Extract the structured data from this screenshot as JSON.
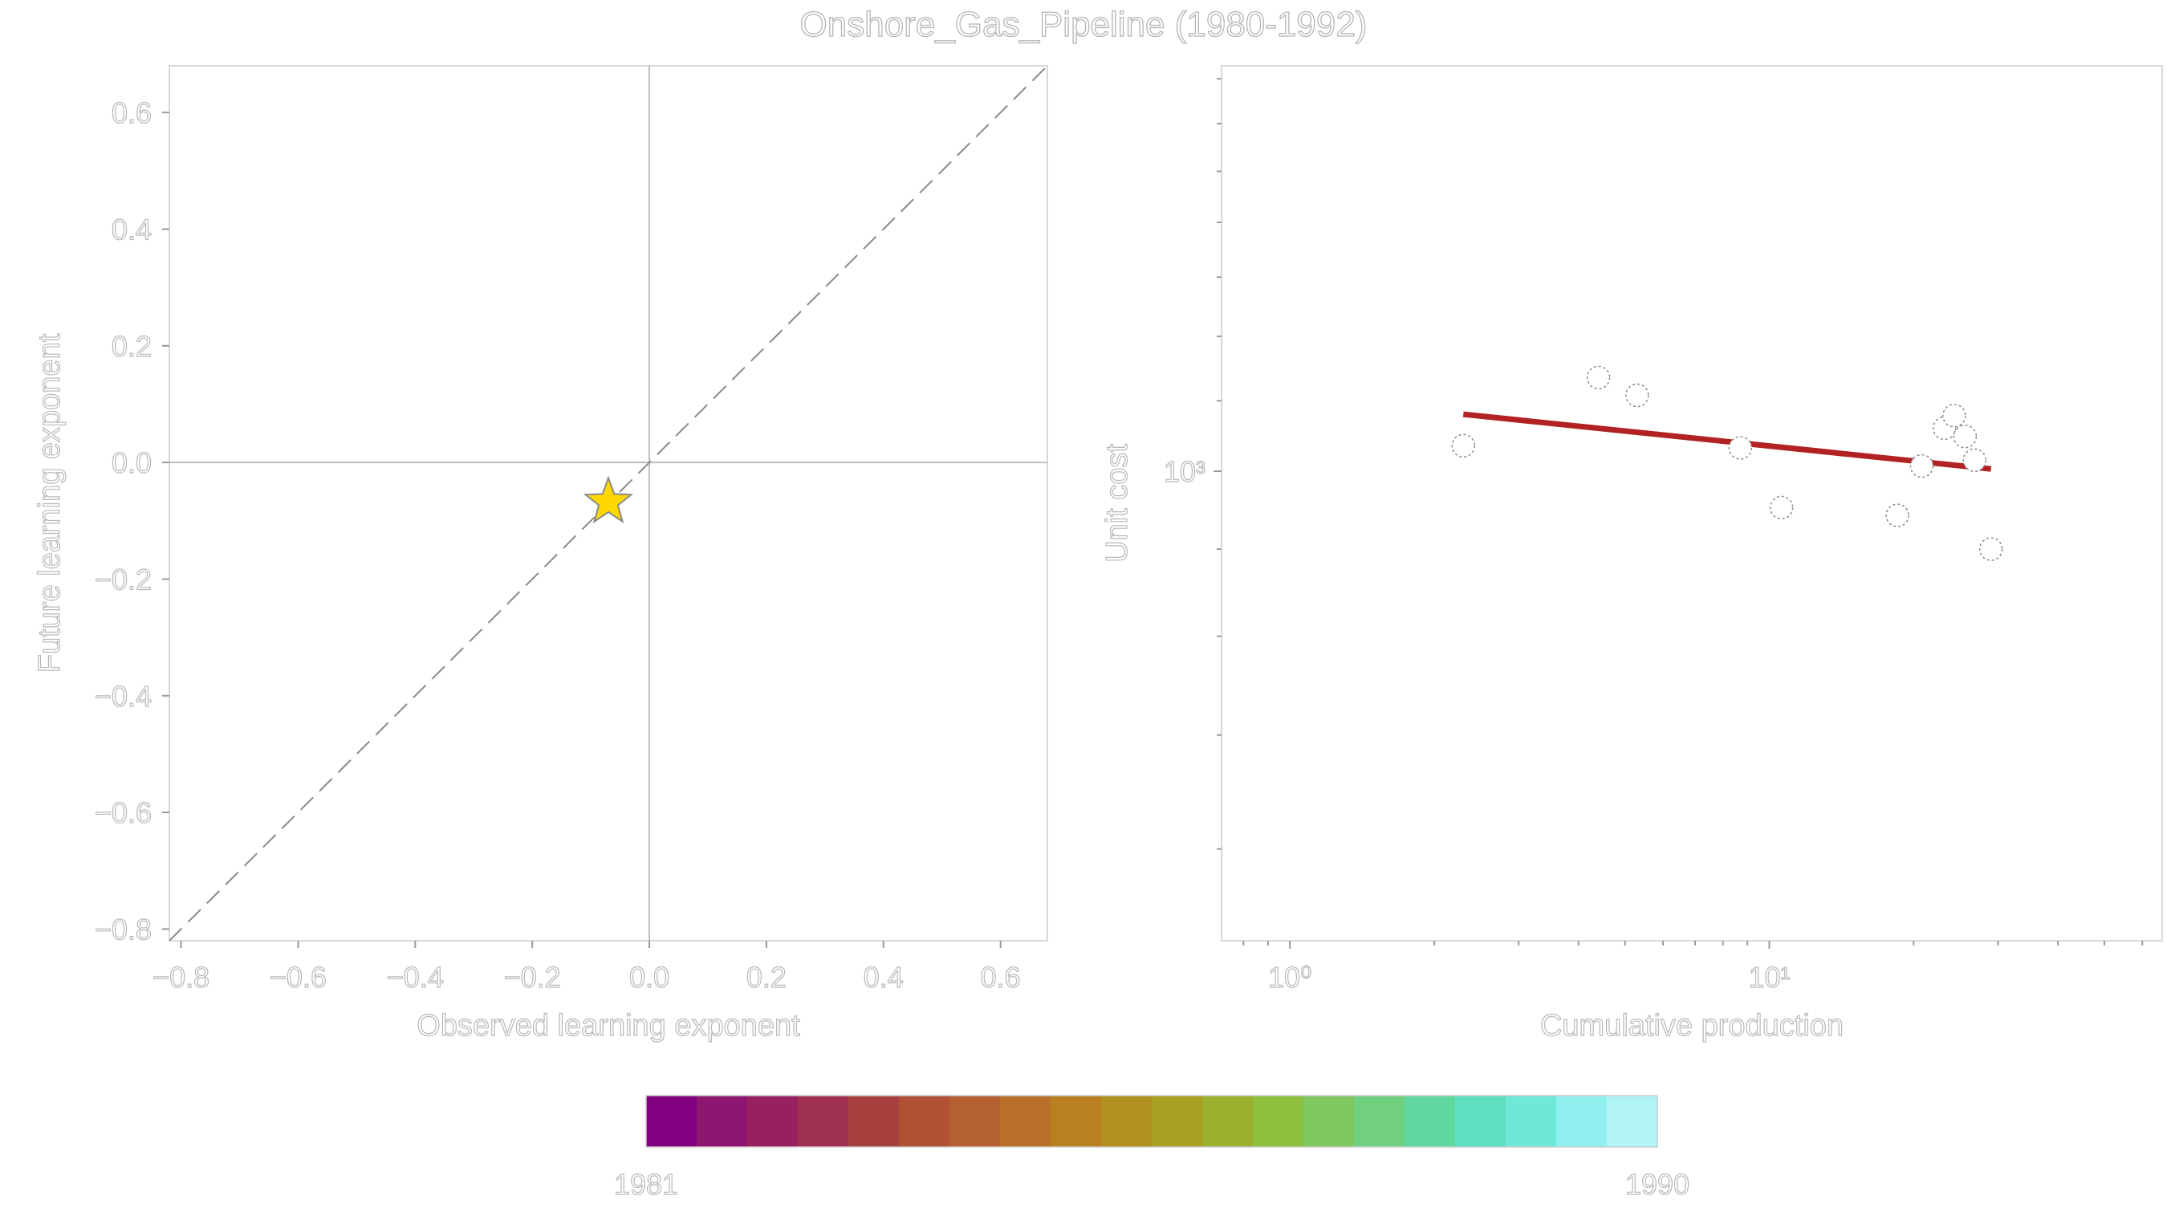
{
  "title": "Onshore_Gas_Pipeline (1980-1992)",
  "chart_data": [
    {
      "type": "scatter",
      "xlabel": "Observed learning exponent",
      "ylabel": "Future learning exponent",
      "xlim": [
        -0.82,
        0.68
      ],
      "ylim": [
        -0.82,
        0.68
      ],
      "x_ticks": [
        "−0.8",
        "−0.6",
        "−0.4",
        "−0.2",
        "0.0",
        "0.2",
        "0.4",
        "0.6"
      ],
      "y_ticks": [
        "−0.8",
        "−0.6",
        "−0.4",
        "−0.2",
        "0.0",
        "0.2",
        "0.4",
        "0.6"
      ],
      "x_tick_values": [
        -0.8,
        -0.6,
        -0.4,
        -0.2,
        0.0,
        0.2,
        0.4,
        0.6
      ],
      "y_tick_values": [
        -0.8,
        -0.6,
        -0.4,
        -0.2,
        0.0,
        0.2,
        0.4,
        0.6
      ],
      "reference_lines": [
        "x=0",
        "y=0",
        "y=x (dashed)"
      ],
      "points": [
        {
          "x": -0.07,
          "y": -0.068,
          "marker": "star",
          "color": "#FFD700"
        }
      ],
      "grid": false
    },
    {
      "type": "scatter",
      "xlabel": "Cumulative production",
      "ylabel": "Unit cost",
      "x_scale": "log",
      "y_scale": "log",
      "x_ticks": [
        "10⁰",
        "10¹"
      ],
      "x_tick_values": [
        1,
        10
      ],
      "y_ticks": [
        "10³"
      ],
      "y_tick_values": [
        1000
      ],
      "xlim": [
        0.72,
        66
      ],
      "ylim": [
        530,
        1730
      ],
      "points": [
        {
          "x": 2.3,
          "y": 1035
        },
        {
          "x": 4.4,
          "y": 1135
        },
        {
          "x": 5.3,
          "y": 1108
        },
        {
          "x": 8.7,
          "y": 1032
        },
        {
          "x": 10.6,
          "y": 952
        },
        {
          "x": 18.5,
          "y": 942
        },
        {
          "x": 20.8,
          "y": 1007
        },
        {
          "x": 23.2,
          "y": 1060
        },
        {
          "x": 24.3,
          "y": 1078
        },
        {
          "x": 25.6,
          "y": 1048
        },
        {
          "x": 26.8,
          "y": 1015
        },
        {
          "x": 29.0,
          "y": 900
        }
      ],
      "fit_line": {
        "x": [
          2.3,
          29.0
        ],
        "y": [
          1080,
          1003
        ],
        "color": "#B22222"
      },
      "grid": false
    }
  ],
  "colorbar": {
    "min_label": "1981",
    "max_label": "1990",
    "colors": [
      "#800080",
      "#8e1570",
      "#962060",
      "#a03050",
      "#a84040",
      "#b05035",
      "#b56030",
      "#b87028",
      "#b88020",
      "#b09020",
      "#a8a020",
      "#9cb030",
      "#8ec040",
      "#80c860",
      "#70d080",
      "#60d8a0",
      "#60e0c0",
      "#70e8d8",
      "#90f0f0",
      "#b0f4f8"
    ]
  }
}
